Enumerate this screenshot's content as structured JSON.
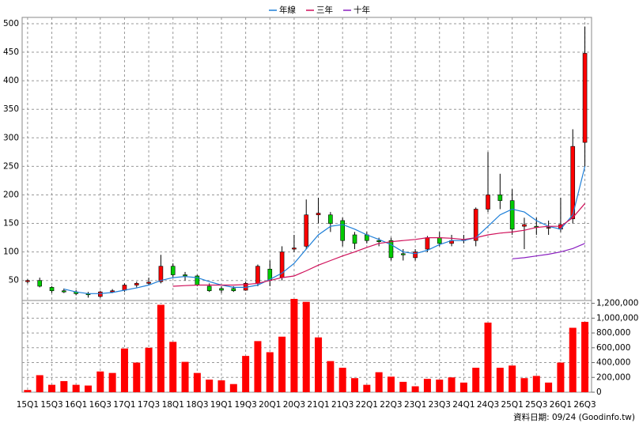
{
  "chart_data": {
    "type": "candlestick",
    "categories": [
      "15Q1",
      null,
      "15Q3",
      null,
      "16Q1",
      null,
      "16Q3",
      null,
      "17Q1",
      null,
      "17Q3",
      null,
      "18Q1",
      null,
      "18Q3",
      null,
      "19Q1",
      null,
      "19Q3",
      null,
      "20Q1",
      null,
      "20Q3",
      null,
      "21Q1",
      null,
      "21Q3",
      null,
      "22Q1",
      null,
      "22Q3",
      null,
      "23Q1",
      null,
      "23Q3",
      null,
      "24Q1",
      null,
      "24Q3",
      null,
      "25Q1",
      null,
      "25Q3",
      null,
      "26Q1",
      null,
      "26Q3"
    ],
    "open": [
      48,
      50,
      38,
      32,
      30,
      27,
      22,
      30,
      33,
      42,
      45,
      48,
      75,
      60,
      58,
      40,
      36,
      36,
      33,
      45,
      70,
      55,
      105,
      110,
      165,
      165,
      155,
      130,
      130,
      120,
      120,
      97,
      90,
      105,
      125,
      115,
      120,
      120,
      175,
      200,
      190,
      145,
      145,
      142,
      140,
      158,
      292
    ],
    "high": [
      52,
      55,
      40,
      36,
      33,
      30,
      32,
      35,
      45,
      48,
      55,
      95,
      80,
      65,
      60,
      45,
      40,
      40,
      48,
      78,
      85,
      110,
      130,
      192,
      195,
      170,
      160,
      135,
      135,
      125,
      125,
      105,
      105,
      128,
      135,
      130,
      130,
      178,
      275,
      237,
      210,
      160,
      160,
      155,
      195,
      315,
      495
    ],
    "low": [
      45,
      38,
      28,
      28,
      24,
      20,
      20,
      28,
      30,
      38,
      42,
      45,
      55,
      50,
      40,
      30,
      28,
      30,
      32,
      40,
      40,
      50,
      100,
      105,
      150,
      135,
      110,
      105,
      115,
      110,
      85,
      85,
      85,
      100,
      110,
      110,
      115,
      110,
      170,
      175,
      130,
      105,
      130,
      130,
      135,
      150,
      250
    ],
    "close": [
      50,
      40,
      32,
      30,
      27,
      25,
      30,
      32,
      42,
      45,
      47,
      75,
      60,
      58,
      42,
      32,
      33,
      32,
      45,
      75,
      50,
      100,
      107,
      165,
      168,
      150,
      120,
      115,
      120,
      118,
      90,
      95,
      100,
      125,
      115,
      120,
      122,
      175,
      200,
      190,
      140,
      148,
      143,
      143,
      148,
      285,
      448
    ],
    "up_color": "#ff0000",
    "down_color": "#00cc00",
    "series": [
      {
        "name": "年線",
        "color": "#1e7fd8",
        "values": [
          null,
          null,
          null,
          35,
          30,
          27,
          27,
          29,
          33,
          37,
          42,
          50,
          55,
          57,
          55,
          48,
          42,
          38,
          38,
          42,
          52,
          63,
          80,
          105,
          130,
          145,
          148,
          140,
          130,
          122,
          113,
          100,
          97,
          103,
          113,
          120,
          120,
          125,
          145,
          165,
          175,
          170,
          155,
          145,
          140,
          165,
          250
        ]
      },
      {
        "name": "三年",
        "color": "#d0105a",
        "values": [
          null,
          null,
          null,
          null,
          null,
          null,
          null,
          null,
          null,
          null,
          null,
          null,
          40,
          41,
          42,
          42,
          42,
          42,
          43,
          45,
          50,
          55,
          58,
          67,
          77,
          85,
          93,
          100,
          108,
          115,
          118,
          120,
          122,
          125,
          125,
          124,
          122,
          125,
          130,
          133,
          135,
          138,
          143,
          145,
          145,
          160,
          185
        ]
      },
      {
        "name": "十年",
        "color": "#8a1fc0",
        "values": [
          null,
          null,
          null,
          null,
          null,
          null,
          null,
          null,
          null,
          null,
          null,
          null,
          null,
          null,
          null,
          null,
          null,
          null,
          null,
          null,
          null,
          null,
          null,
          null,
          null,
          null,
          null,
          null,
          null,
          null,
          null,
          null,
          null,
          null,
          null,
          null,
          null,
          null,
          null,
          null,
          88,
          90,
          93,
          96,
          100,
          106,
          115
        ]
      }
    ],
    "volume": {
      "color": "#ff0000",
      "values": [
        30000,
        230000,
        100000,
        150000,
        100000,
        90000,
        280000,
        260000,
        590000,
        400000,
        600000,
        1180000,
        680000,
        410000,
        260000,
        170000,
        160000,
        110000,
        490000,
        690000,
        540000,
        750000,
        1260000,
        1220000,
        740000,
        420000,
        330000,
        190000,
        100000,
        270000,
        210000,
        140000,
        80000,
        180000,
        170000,
        200000,
        130000,
        330000,
        940000,
        330000,
        360000,
        190000,
        220000,
        130000,
        400000,
        870000,
        950000
      ]
    },
    "ylim": [
      15,
      511
    ],
    "yticks": [
      50,
      100,
      150,
      200,
      250,
      300,
      350,
      400,
      450,
      500
    ],
    "y2lim": [
      0,
      1260000
    ],
    "y2ticks": [
      0,
      {
        "value": 200000,
        "label": "200,000"
      },
      {
        "value": 400000,
        "label": "400,000"
      },
      {
        "value": 600000,
        "label": "600,000"
      },
      {
        "value": 800000,
        "label": "800,000"
      },
      {
        "value": 1000000,
        "label": "1,000,000"
      },
      {
        "value": 1200000,
        "label": "1,200,000"
      }
    ],
    "grid": true,
    "legend": "top",
    "source": "資料日期: 09/24 (Goodinfo.tw)"
  }
}
